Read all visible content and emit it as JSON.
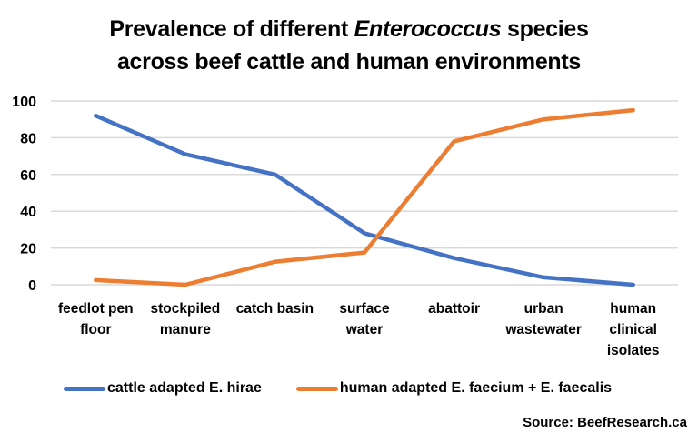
{
  "chart_data": {
    "type": "line",
    "title_parts": [
      "Prevalence of different ",
      "Enterococcus",
      " species",
      "across beef cattle and human environments"
    ],
    "title": "Prevalence of different Enterococcus species across beef cattle and human environments",
    "categories": [
      "feedlot pen\nfloor",
      "stockpiled\nmanure",
      "catch basin",
      "surface\nwater",
      "abattoir",
      "urban\nwastewater",
      "human\nclinical\nisolates"
    ],
    "series": [
      {
        "name": "cattle adapted E. hirae",
        "color": "#4472C4",
        "values": [
          92,
          71,
          60,
          28,
          14.5,
          4,
          0
        ]
      },
      {
        "name": "human adapted E. faecium + E. faecalis",
        "color": "#ED7D31",
        "values": [
          2.5,
          0,
          12.5,
          17.5,
          78,
          90,
          95
        ]
      }
    ],
    "yticks": [
      "0",
      "20",
      "40",
      "60",
      "80",
      "100"
    ],
    "ylim": [
      0,
      100
    ],
    "xlabel": "",
    "ylabel": "",
    "grid": true,
    "legend_position": "bottom"
  },
  "source": "Source: BeefResearch.ca"
}
